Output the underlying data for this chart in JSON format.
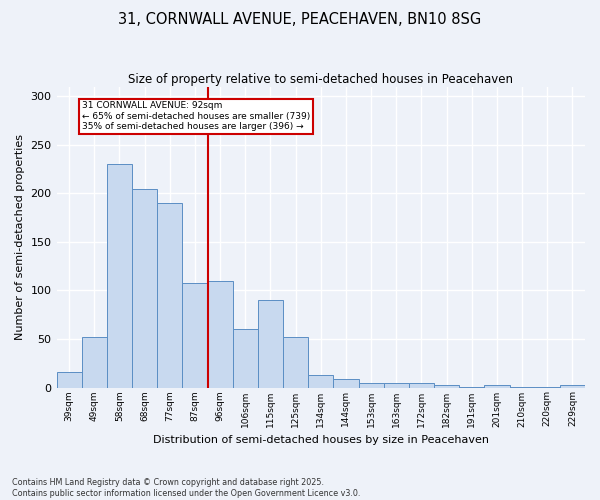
{
  "title1": "31, CORNWALL AVENUE, PEACEHAVEN, BN10 8SG",
  "title2": "Size of property relative to semi-detached houses in Peacehaven",
  "xlabel": "Distribution of semi-detached houses by size in Peacehaven",
  "ylabel": "Number of semi-detached properties",
  "categories": [
    "39sqm",
    "49sqm",
    "58sqm",
    "68sqm",
    "77sqm",
    "87sqm",
    "96sqm",
    "106sqm",
    "115sqm",
    "125sqm",
    "134sqm",
    "144sqm",
    "153sqm",
    "163sqm",
    "172sqm",
    "182sqm",
    "191sqm",
    "201sqm",
    "210sqm",
    "220sqm",
    "229sqm"
  ],
  "values": [
    16,
    52,
    230,
    205,
    190,
    108,
    110,
    60,
    90,
    52,
    13,
    9,
    5,
    5,
    5,
    3,
    1,
    3,
    1,
    1,
    3
  ],
  "bar_color": "#c8d9ef",
  "bar_edge_color": "#5b8ec4",
  "vline_color": "#cc0000",
  "annotation_title": "31 CORNWALL AVENUE: 92sqm",
  "annotation_line1": "← 65% of semi-detached houses are smaller (739)",
  "annotation_line2": "35% of semi-detached houses are larger (396) →",
  "annotation_box_color": "#cc0000",
  "footer1": "Contains HM Land Registry data © Crown copyright and database right 2025.",
  "footer2": "Contains public sector information licensed under the Open Government Licence v3.0.",
  "ylim": [
    0,
    310
  ],
  "yticks": [
    0,
    50,
    100,
    150,
    200,
    250,
    300
  ],
  "background_color": "#eef2f9",
  "grid_color": "#ffffff"
}
